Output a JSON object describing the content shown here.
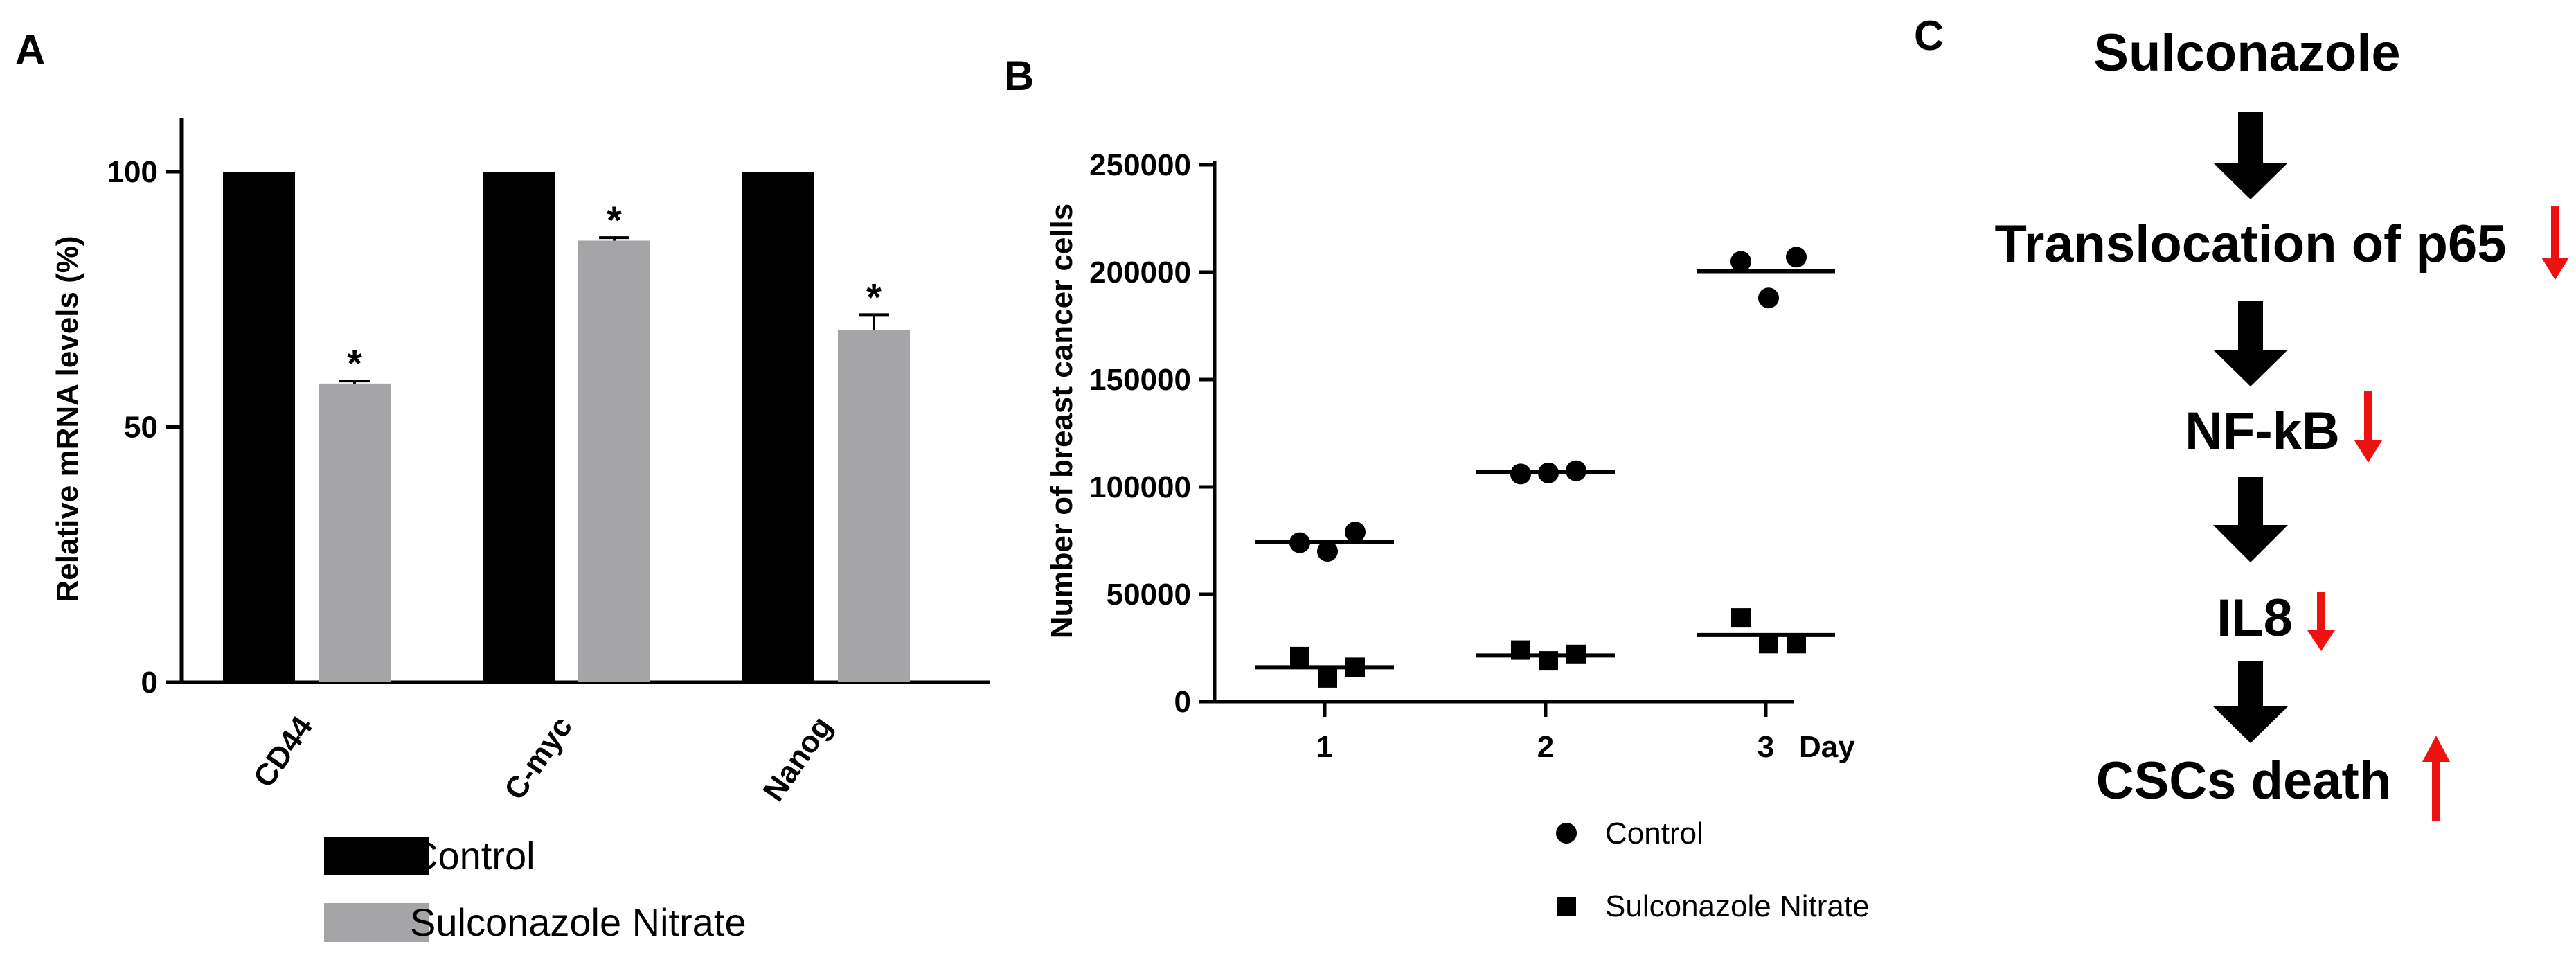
{
  "panels": {
    "a": "A",
    "b": "B",
    "c": "C"
  },
  "chart_data": [
    {
      "type": "bar",
      "panel": "A",
      "categories": [
        "CD44",
        "C-myc",
        "Nanog"
      ],
      "series": [
        {
          "name": "Control",
          "values": [
            100,
            100,
            100
          ],
          "errors": [
            0,
            0,
            0
          ],
          "color": "#000000"
        },
        {
          "name": "Sulconazole Nitrate",
          "values": [
            58.5,
            86.5,
            69
          ],
          "errors": [
            0.5,
            0.6,
            3
          ],
          "color": "#a5a5a8"
        }
      ],
      "significance": [
        "*",
        "*",
        "*"
      ],
      "ylabel": "Relative mRNA levels (%)",
      "xlabel": "",
      "ylim": [
        0,
        110
      ],
      "yticks": [
        0,
        50,
        100
      ],
      "legend_position": "bottom"
    },
    {
      "type": "scatter",
      "panel": "B",
      "x_categories": [
        "1",
        "2",
        "3"
      ],
      "x_unit_label": "Day",
      "ylabel": "Number of breast cancer cells",
      "ylim": [
        0,
        250000
      ],
      "yticks": [
        0,
        50000,
        100000,
        150000,
        200000,
        250000
      ],
      "series": [
        {
          "name": "Control",
          "marker": "circle",
          "points": [
            {
              "x": 1,
              "values": [
                74000,
                70000,
                79000
              ],
              "mean": 74500
            },
            {
              "x": 2,
              "values": [
                106000,
                106500,
                107500
              ],
              "mean": 107000
            },
            {
              "x": 3,
              "values": [
                205000,
                188000,
                207000
              ],
              "mean": 200500
            }
          ]
        },
        {
          "name": "Sulconazole Nitrate",
          "marker": "square",
          "points": [
            {
              "x": 1,
              "values": [
                21000,
                11000,
                16000
              ],
              "mean": 16000
            },
            {
              "x": 2,
              "values": [
                24000,
                19000,
                22000
              ],
              "mean": 21500
            },
            {
              "x": 3,
              "values": [
                39000,
                27000,
                27000
              ],
              "mean": 31000
            }
          ]
        }
      ],
      "legend_position": "bottom"
    }
  ],
  "flow": {
    "steps": [
      "Sulconazole",
      "Translocation of p65",
      "NF-kB",
      "IL8",
      "CSCs death"
    ],
    "indicators": [
      "",
      "down",
      "down",
      "down",
      "up"
    ],
    "arrow_color": "#000000",
    "indicator_color": "#ee1111"
  }
}
